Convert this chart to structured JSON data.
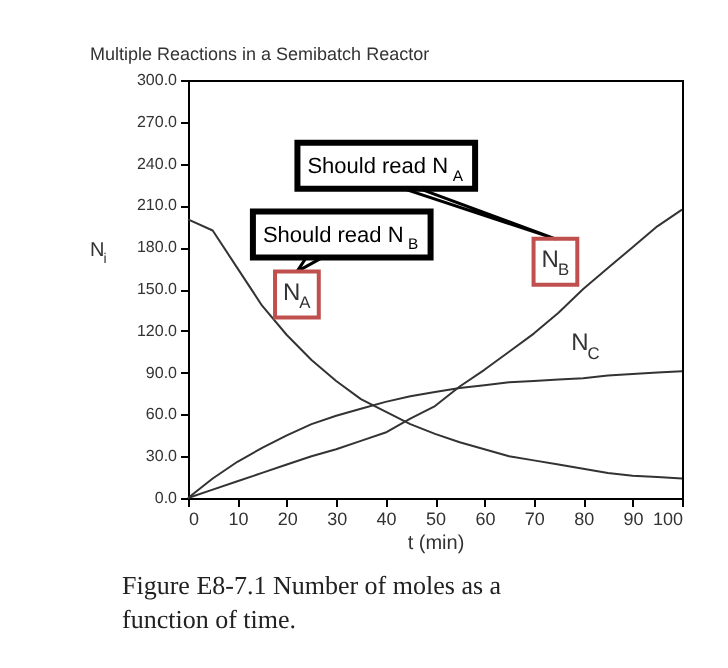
{
  "chart_data": {
    "type": "line",
    "title": "Multiple Reactions in a Semibatch Reactor",
    "xlabel": "t (min)",
    "ylabel": "N$_{i}$",
    "x": [
      0,
      5,
      10,
      15,
      20,
      25,
      30,
      35,
      40,
      45,
      50,
      55,
      60,
      65,
      70,
      75,
      80,
      85,
      90,
      95,
      100
    ],
    "series": [
      {
        "name": "N$_{A}$",
        "color": "#333333",
        "values": [
          200,
          192,
          165,
          138,
          117,
          99,
          84,
          71,
          62,
          53,
          46,
          40,
          35,
          30,
          27,
          24,
          21,
          18,
          16,
          15,
          14
        ]
      },
      {
        "name": "N$_{B}$",
        "color": "#333333",
        "values": [
          0,
          6,
          12,
          18,
          24,
          30,
          35,
          41,
          47,
          57,
          66,
          80,
          92,
          105,
          118,
          133,
          150,
          165,
          180,
          195,
          207
        ]
      },
      {
        "name": "N$_{C}$",
        "color": "#333333",
        "values": [
          0,
          14,
          26,
          36,
          45,
          53,
          59,
          64,
          69,
          73,
          76,
          79,
          81,
          83,
          84,
          85,
          86,
          88,
          89,
          90,
          91
        ]
      }
    ],
    "xlim": [
      0,
      100
    ],
    "xticks": [
      0,
      10,
      20,
      30,
      40,
      50,
      60,
      70,
      80,
      90,
      100
    ],
    "ylim": [
      0,
      300
    ],
    "yticks": [
      {
        "value": 0,
        "label": "0.0"
      },
      {
        "value": 30,
        "label": "30.0"
      },
      {
        "value": 60,
        "label": "60.0"
      },
      {
        "value": 90,
        "label": "90.0"
      },
      {
        "value": 120,
        "label": "120.0"
      },
      {
        "value": 150,
        "label": "150.0"
      },
      {
        "value": 180,
        "label": "180.0"
      },
      {
        "value": 210,
        "label": "210.0"
      },
      {
        "value": 240,
        "label": "240.0"
      },
      {
        "value": 270,
        "label": "270.0"
      },
      {
        "value": 300,
        "label": "300.0"
      }
    ],
    "marker": "none",
    "line_style": "solid",
    "annotations": [
      "Should read N$_{B}$",
      "Should read N$_{A}$",
      "Figure E8-7.1 Number of moles as a function of time."
    ]
  }
}
